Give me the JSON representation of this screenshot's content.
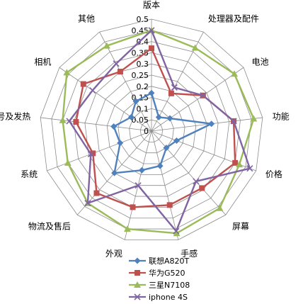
{
  "chart_data": {
    "type": "radar",
    "categories": [
      "版本",
      "处理器及配件",
      "电池",
      "功能",
      "价格",
      "屏幕",
      "手感",
      "外观",
      "物流及售后",
      "系统",
      "信号及发热",
      "相机",
      "其他"
    ],
    "ticks": [
      "0",
      "0.05",
      "0.1",
      "0.15",
      "0.2",
      "0.25",
      "0.3",
      "0.35",
      "0.4",
      "0.45",
      "0.5"
    ],
    "range": [
      0,
      0.5
    ],
    "grid": true,
    "legend_position": "bottom",
    "series": [
      {
        "name": "联想A820T",
        "color": "#4f81bd",
        "marker": "diamond",
        "values": [
          0.17,
          0.07,
          0.1,
          0.27,
          0.12,
          0.1,
          0.16,
          0.18,
          0.25,
          0.15,
          0.17,
          0.11,
          0.15
        ]
      },
      {
        "name": "华为G520",
        "color": "#c0504d",
        "marker": "square",
        "values": [
          0.37,
          0.19,
          0.28,
          0.37,
          0.4,
          0.34,
          0.34,
          0.35,
          0.37,
          0.28,
          0.34,
          0.37,
          0.3
        ]
      },
      {
        "name": "三星N7108",
        "color": "#9bbb59",
        "marker": "triangle",
        "values": [
          0.45,
          0.42,
          0.45,
          0.46,
          0.42,
          0.46,
          0.47,
          0.45,
          0.43,
          0.4,
          0.4,
          0.46,
          0.43
        ]
      },
      {
        "name": "iphone 4S",
        "color": "#8064a2",
        "marker": "x",
        "values": [
          0.45,
          0.22,
          0.28,
          0.37,
          0.47,
          0.3,
          0.46,
          0.25,
          0.43,
          0.29,
          0.37,
          0.32,
          0.34
        ]
      }
    ]
  }
}
